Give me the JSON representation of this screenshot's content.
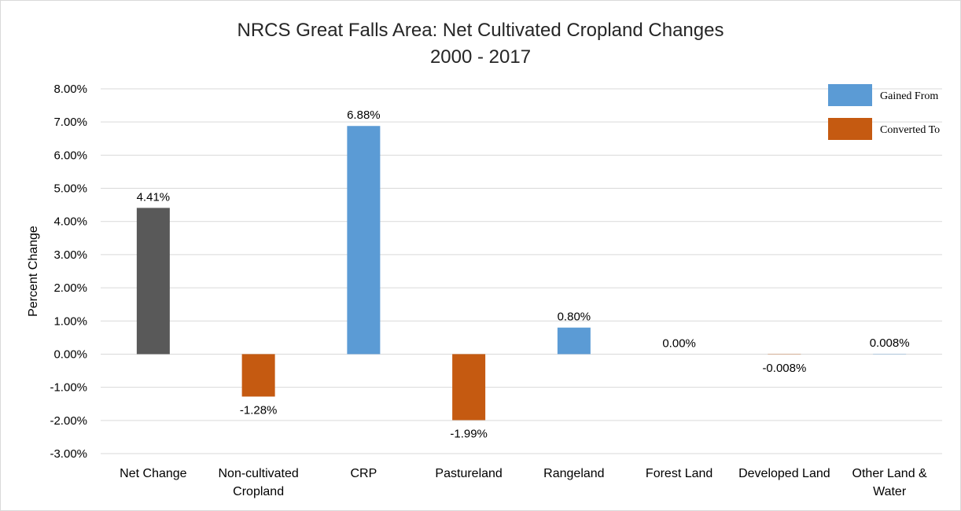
{
  "colors": {
    "net": "#595959",
    "gained": "#5b9bd5",
    "converted": "#c55a11",
    "grid": "#d9d9d9"
  },
  "chart_data": {
    "type": "bar",
    "title": [
      "NRCS Great Falls Area: Net Cultivated Cropland Changes",
      "2000 - 2017"
    ],
    "ylabel": "Percent Change",
    "xlabel": "",
    "ylim": [
      -3,
      8
    ],
    "ytick_step": 1,
    "yticks": [
      "8.00%",
      "7.00%",
      "6.00%",
      "5.00%",
      "4.00%",
      "3.00%",
      "2.00%",
      "1.00%",
      "0.00%",
      "-1.00%",
      "-2.00%",
      "-3.00%"
    ],
    "grid": true,
    "legend_position": "top-right",
    "legend": [
      {
        "label": "Gained From",
        "color_key": "gained"
      },
      {
        "label": "Converted To",
        "color_key": "converted"
      }
    ],
    "categories": [
      [
        "Net Change"
      ],
      [
        "Non-cultivated",
        "Cropland"
      ],
      [
        "CRP"
      ],
      [
        "Pastureland"
      ],
      [
        "Rangeland"
      ],
      [
        "Forest Land"
      ],
      [
        "Developed Land"
      ],
      [
        "Other Land &",
        "Water"
      ]
    ],
    "values": [
      4.41,
      -1.28,
      6.88,
      -1.99,
      0.8,
      0.0,
      -0.008,
      0.008
    ],
    "bar_color_keys": [
      "net",
      "converted",
      "gained",
      "converted",
      "gained",
      "gained",
      "converted",
      "gained"
    ],
    "data_labels": [
      "4.41%",
      "-1.28%",
      "6.88%",
      "-1.99%",
      "0.80%",
      "0.00%",
      "-0.008%",
      "0.008%"
    ]
  }
}
